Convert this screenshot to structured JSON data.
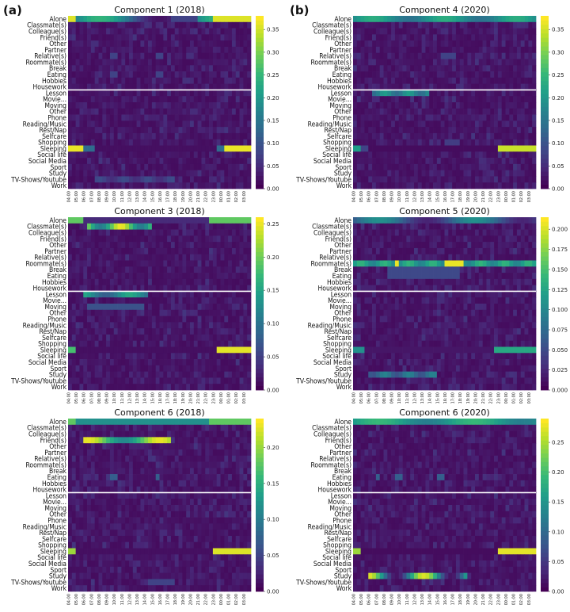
{
  "panel_labels": {
    "a": "(a)",
    "b": "(b)"
  },
  "colors": {
    "divider": "#ffffff",
    "colormap": "viridis"
  },
  "chart_data": [
    {
      "type": "heatmap",
      "title": "Component 1 (2018)",
      "colorbar": {
        "ticks": [
          "0.00",
          "0.05",
          "0.10",
          "0.15",
          "0.20",
          "0.25",
          "0.30",
          "0.35"
        ],
        "vmax": 0.38
      },
      "hot_cells": [
        {
          "row": "Alone",
          "level": 0.36
        },
        {
          "row": "Sleeping",
          "level": 0.37
        },
        {
          "row": "TV-Shows/Youtube",
          "level": 0.06
        }
      ]
    },
    {
      "type": "heatmap",
      "title": "Component 4 (2020)",
      "colorbar": {
        "ticks": [
          "0.00",
          "0.05",
          "0.10",
          "0.15",
          "0.20",
          "0.25",
          "0.30",
          "0.35"
        ],
        "vmax": 0.38
      },
      "hot_cells": [
        {
          "row": "Alone",
          "level": 0.2
        },
        {
          "row": "Lesson",
          "level": 0.2
        },
        {
          "row": "Sleeping",
          "level": 0.35
        }
      ]
    },
    {
      "type": "heatmap",
      "title": "Component 3 (2018)",
      "colorbar": {
        "ticks": [
          "0.00",
          "0.05",
          "0.10",
          "0.15",
          "0.20",
          "0.25"
        ],
        "vmax": 0.26
      },
      "hot_cells": [
        {
          "row": "Classmate(s)",
          "level": 0.25
        },
        {
          "row": "Lesson",
          "level": 0.15
        },
        {
          "row": "Sleeping",
          "level": 0.25
        }
      ]
    },
    {
      "type": "heatmap",
      "title": "Component 5 (2020)",
      "colorbar": {
        "ticks": [
          "0.000",
          "0.025",
          "0.050",
          "0.075",
          "0.100",
          "0.125",
          "0.150",
          "0.175",
          "0.200"
        ],
        "vmax": 0.215
      },
      "hot_cells": [
        {
          "row": "Roommate(s)",
          "level": 0.2
        },
        {
          "row": "Sleeping",
          "level": 0.12
        },
        {
          "row": "Study",
          "level": 0.08
        }
      ]
    },
    {
      "type": "heatmap",
      "title": "Component 6 (2018)",
      "colorbar": {
        "ticks": [
          "0.00",
          "0.05",
          "0.10",
          "0.15",
          "0.20"
        ],
        "vmax": 0.24
      },
      "hot_cells": [
        {
          "row": "Alone",
          "level": 0.12
        },
        {
          "row": "Friend(s)",
          "level": 0.22
        },
        {
          "row": "Sleeping",
          "level": 0.22
        }
      ]
    },
    {
      "type": "heatmap",
      "title": "Component 6 (2020)",
      "colorbar": {
        "ticks": [
          "0.00",
          "0.05",
          "0.10",
          "0.15",
          "0.20",
          "0.25"
        ],
        "vmax": 0.29
      },
      "hot_cells": [
        {
          "row": "Alone",
          "level": 0.18
        },
        {
          "row": "Sleeping",
          "level": 0.28
        },
        {
          "row": "Study",
          "level": 0.25
        }
      ]
    }
  ],
  "row_labels": [
    "Alone",
    "Classmate(s)",
    "Colleague(s)",
    "Friend(s)",
    "Other",
    "Partner",
    "Relative(s)",
    "Roommate(s)",
    "Break",
    "Eating",
    "Hobbies",
    "Housework",
    "Lesson",
    "Movie...",
    "Moving",
    "Other",
    "Phone",
    "Reading/Music",
    "Rest/Nap",
    "Selfcare",
    "Shopping",
    "Sleeping",
    "Social life",
    "Social Media",
    "Sport",
    "Study",
    "TV-Shows/Youtube",
    "Work"
  ],
  "x_ticks": [
    "04:00",
    "05:00",
    "06:00",
    "07:00",
    "08:00",
    "09:00",
    "10:00",
    "11:00",
    "12:00",
    "13:00",
    "14:00",
    "15:00",
    "16:00",
    "17:00",
    "18:00",
    "19:00",
    "20:00",
    "21:00",
    "22:00",
    "23:00",
    "00:00",
    "01:00",
    "02:00",
    "03:00"
  ]
}
